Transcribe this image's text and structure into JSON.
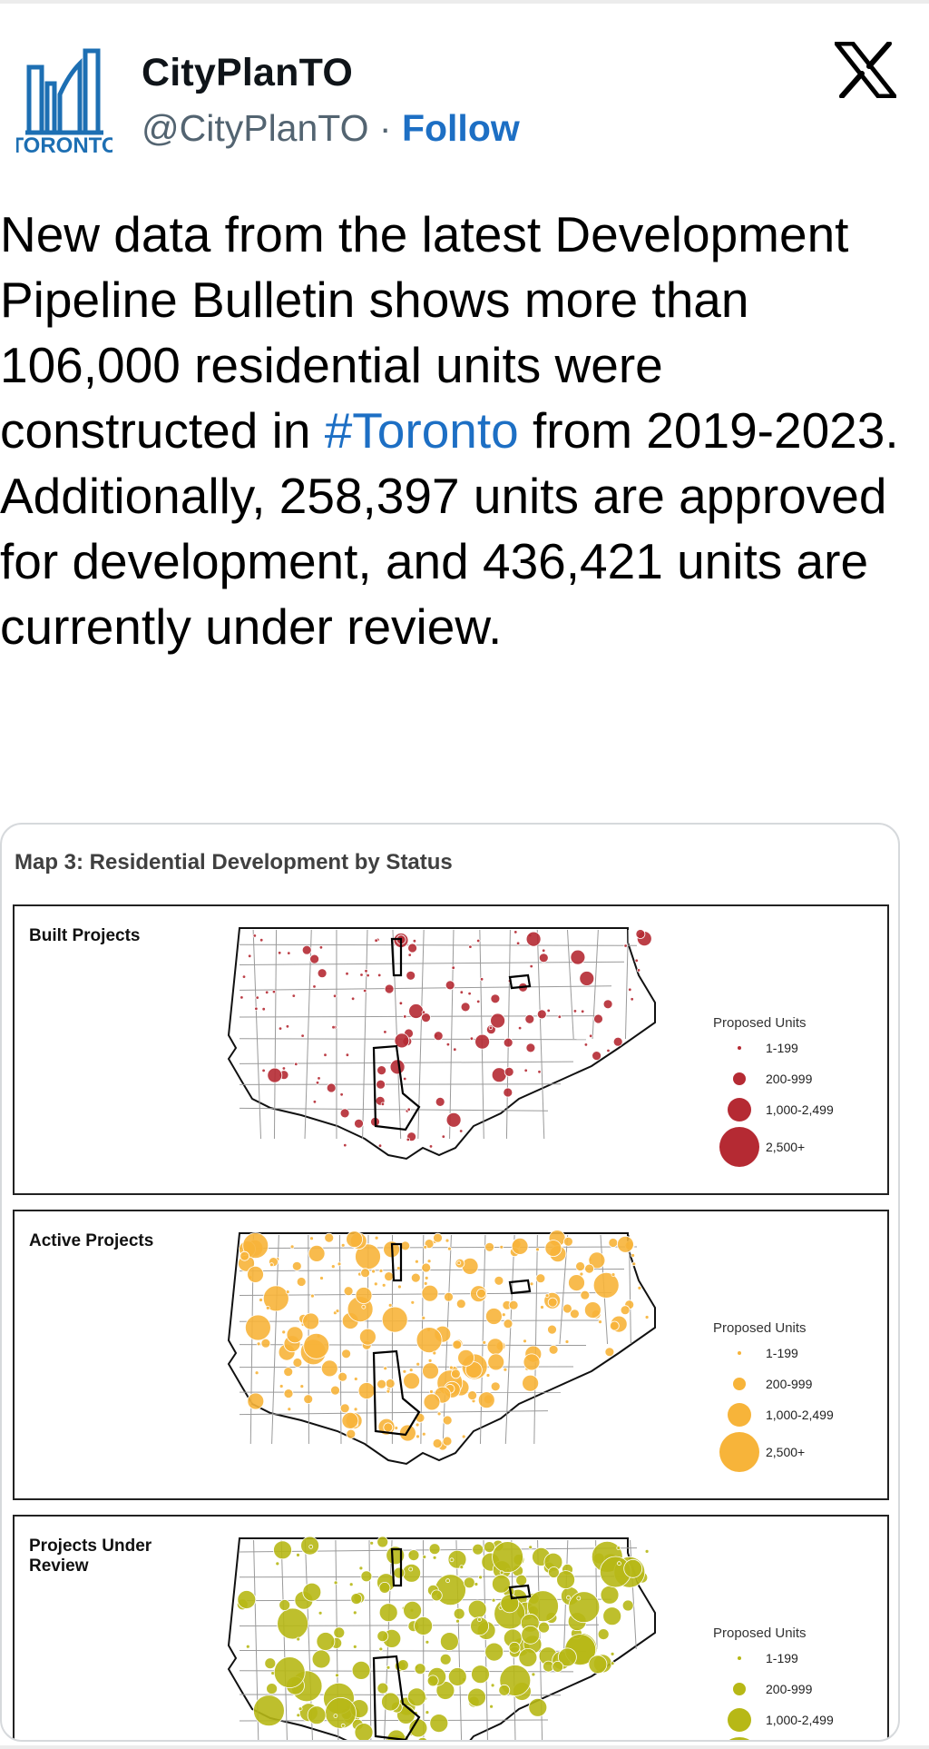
{
  "header": {
    "display_name": "CityPlanTO",
    "handle": "@CityPlanTO",
    "separator": "·",
    "follow_label": "Follow",
    "avatar_logo_text": "TORONTO"
  },
  "tweet": {
    "text_before": "New data from the latest Development Pipeline Bulletin shows more than 106,000 residential units were constructed in ",
    "hashtag": "#Toronto",
    "text_after": " from 2019-2023. Additionally, 258,397 units are approved for development, and 436,421 units are currently under review."
  },
  "media": {
    "map_title": "Map 3: Residential Development by Status",
    "panels": [
      {
        "title": "Built Projects",
        "color": "#b52a33",
        "dot_count": 140
      },
      {
        "title": "Active Projects",
        "color": "#f7b43a",
        "dot_count": 220
      },
      {
        "title": "Projects Under Review",
        "color": "#b7b816",
        "dot_count": 200
      }
    ],
    "legend": {
      "title": "Proposed Units",
      "items": [
        "1-199",
        "200-999",
        "1,000-2,499",
        "2,500+"
      ]
    }
  },
  "colors": {
    "link": "#1d6fc4",
    "text": "#0f1419",
    "muted": "#536471",
    "toronto_blue": "#1d6fb3"
  }
}
